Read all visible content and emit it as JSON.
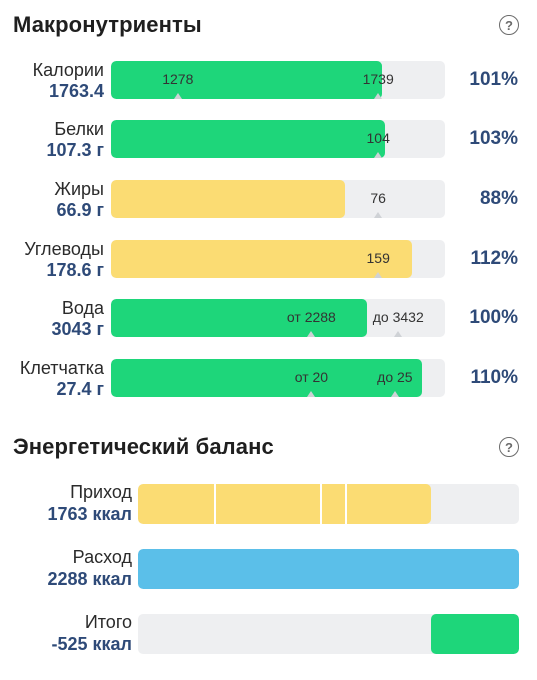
{
  "macros": {
    "title": "Макронутриенты",
    "help": "?",
    "rows": [
      {
        "name": "Калории",
        "value": "1763.4",
        "percent": "101%",
        "fill": 0.81,
        "color": "green",
        "markers": [
          {
            "label": "1278",
            "pos": 0.2
          },
          {
            "label": "1739",
            "pos": 0.8
          }
        ]
      },
      {
        "name": "Белки",
        "value": "107.3 г",
        "percent": "103%",
        "fill": 0.82,
        "color": "green",
        "markers": [
          {
            "label": "104",
            "pos": 0.8
          }
        ]
      },
      {
        "name": "Жиры",
        "value": "66.9 г",
        "percent": "88%",
        "fill": 0.7,
        "color": "yellow",
        "markers": [
          {
            "label": "76",
            "pos": 0.8
          }
        ]
      },
      {
        "name": "Углеводы",
        "value": "178.6 г",
        "percent": "112%",
        "fill": 0.9,
        "color": "yellow",
        "markers": [
          {
            "label": "159",
            "pos": 0.8
          }
        ]
      },
      {
        "name": "Вода",
        "value": "3043 г",
        "percent": "100%",
        "fill": 0.765,
        "color": "green",
        "markers": [
          {
            "label": "от 2288",
            "pos": 0.6
          },
          {
            "label": "до 3432",
            "pos": 0.86
          }
        ]
      },
      {
        "name": "Клетчатка",
        "value": "27.4 г",
        "percent": "110%",
        "fill": 0.93,
        "color": "green",
        "markers": [
          {
            "label": "от 20",
            "pos": 0.6
          },
          {
            "label": "до 25",
            "pos": 0.85
          }
        ]
      }
    ]
  },
  "energy": {
    "title": "Энергетический баланс",
    "help": "?",
    "rows": [
      {
        "name": "Приход",
        "value": "1763 ккал",
        "color": "yellow",
        "fill": 0.77
      },
      {
        "name": "Расход",
        "value": "2288 ккал",
        "color": "blue",
        "fill": 1.0
      },
      {
        "name": "Итого",
        "value": "-525 ккал",
        "color": "green",
        "fill": 0.23
      }
    ]
  }
}
